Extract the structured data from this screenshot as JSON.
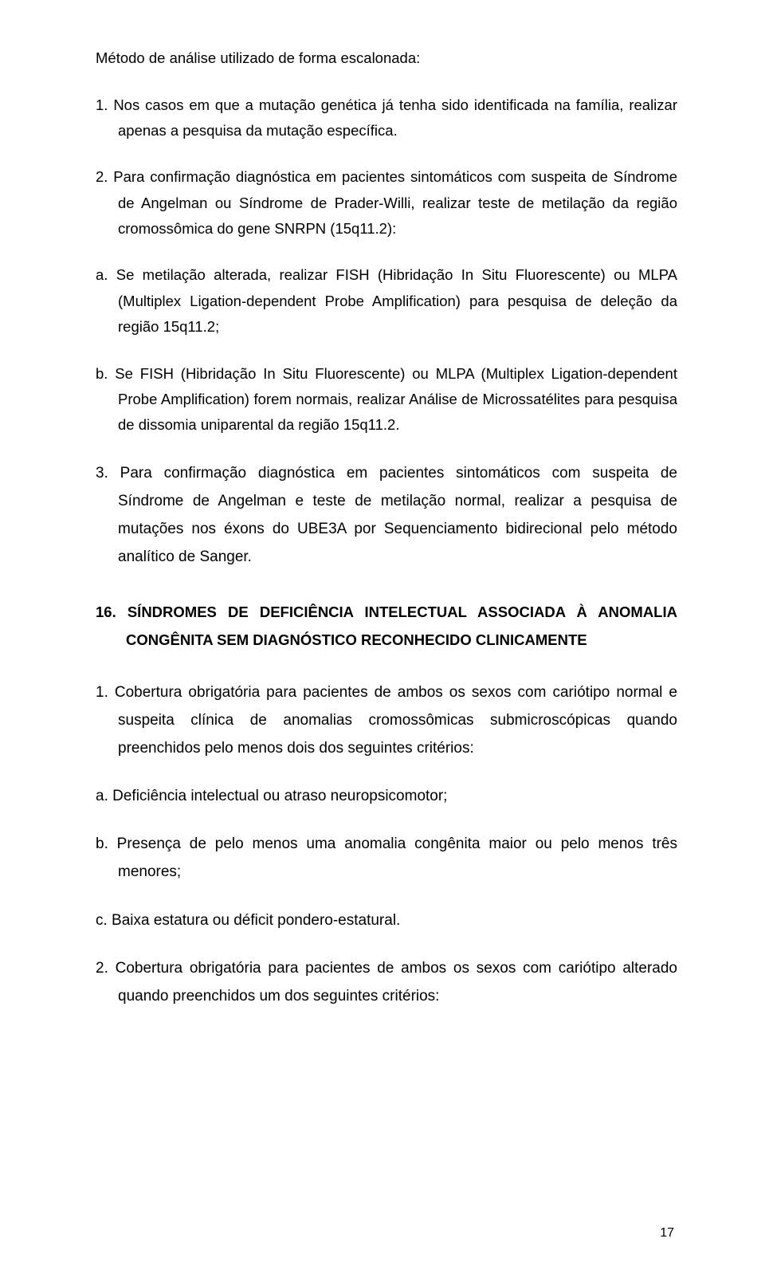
{
  "heading": "Método de análise utilizado de forma escalonada:",
  "item1": "1. Nos casos em que a mutação genética já tenha sido identificada na família, realizar apenas a pesquisa da mutação específica.",
  "item2": "2. Para confirmação diagnóstica em pacientes sintomáticos com suspeita de Síndrome de Angelman ou Síndrome de Prader-Willi, realizar teste de metilação da região cromossômica do gene SNRPN (15q11.2):",
  "item2a": "a. Se metilação alterada, realizar FISH (Hibridação In Situ Fluorescente) ou MLPA (Multiplex Ligation-dependent Probe Amplification) para pesquisa de deleção da região 15q11.2;",
  "item2b": "b. Se FISH (Hibridação In Situ Fluorescente) ou MLPA (Multiplex Ligation-dependent Probe Amplification) forem normais, realizar Análise de Microssatélites para pesquisa de dissomia uniparental da região 15q11.2.",
  "item3": "3. Para confirmação diagnóstica em pacientes sintomáticos com suspeita de Síndrome de Angelman e teste de metilação normal, realizar a pesquisa de mutações nos éxons do UBE3A por Sequenciamento bidirecional pelo método analítico de Sanger.",
  "section16": "16. SÍNDROMES DE DEFICIÊNCIA INTELECTUAL ASSOCIADA À ANOMALIA CONGÊNITA SEM DIAGNÓSTICO RECONHECIDO CLINICAMENTE",
  "s16_1": "1. Cobertura obrigatória para pacientes de ambos os sexos com cariótipo normal e suspeita clínica de anomalias cromossômicas submicroscópicas quando preenchidos pelo menos dois dos seguintes critérios:",
  "s16_a": "a. Deficiência intelectual ou atraso neuropsicomotor;",
  "s16_b": "b. Presença de pelo menos uma anomalia congênita maior ou pelo menos três menores;",
  "s16_c": "c. Baixa estatura ou déficit pondero-estatural.",
  "s16_2": "2. Cobertura obrigatória para pacientes de ambos os sexos com cariótipo alterado quando preenchidos um dos seguintes critérios:",
  "page_number": "17"
}
